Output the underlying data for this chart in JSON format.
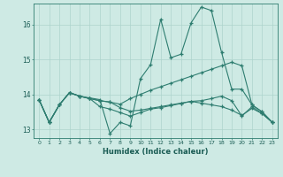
{
  "xlabel": "Humidex (Indice chaleur)",
  "background_color": "#ceeae4",
  "line_color": "#2e7d70",
  "grid_color": "#aed4cc",
  "xlim": [
    -0.5,
    23.5
  ],
  "ylim": [
    12.75,
    16.6
  ],
  "yticks": [
    13,
    14,
    15,
    16
  ],
  "xticks": [
    0,
    1,
    2,
    3,
    4,
    5,
    6,
    7,
    8,
    9,
    10,
    11,
    12,
    13,
    14,
    15,
    16,
    17,
    18,
    19,
    20,
    21,
    22,
    23
  ],
  "series": [
    [
      13.85,
      13.2,
      13.7,
      14.05,
      13.95,
      13.9,
      13.85,
      12.88,
      13.2,
      13.1,
      14.45,
      14.85,
      16.15,
      15.05,
      15.15,
      16.05,
      16.5,
      16.4,
      15.2,
      14.15,
      14.15,
      13.7,
      13.5,
      13.2
    ],
    [
      13.85,
      13.2,
      13.7,
      14.05,
      13.95,
      13.88,
      13.82,
      13.78,
      13.72,
      13.88,
      14.0,
      14.12,
      14.22,
      14.32,
      14.42,
      14.52,
      14.62,
      14.72,
      14.82,
      14.92,
      14.82,
      13.7,
      13.5,
      13.2
    ],
    [
      13.85,
      13.2,
      13.7,
      14.05,
      13.95,
      13.88,
      13.82,
      13.78,
      13.62,
      13.52,
      13.55,
      13.6,
      13.65,
      13.7,
      13.75,
      13.8,
      13.75,
      13.7,
      13.65,
      13.55,
      13.4,
      13.6,
      13.45,
      13.2
    ],
    [
      13.85,
      13.2,
      13.7,
      14.05,
      13.95,
      13.88,
      13.65,
      13.58,
      13.48,
      13.38,
      13.48,
      13.58,
      13.62,
      13.68,
      13.74,
      13.8,
      13.82,
      13.88,
      13.95,
      13.82,
      13.38,
      13.65,
      13.45,
      13.2
    ]
  ]
}
